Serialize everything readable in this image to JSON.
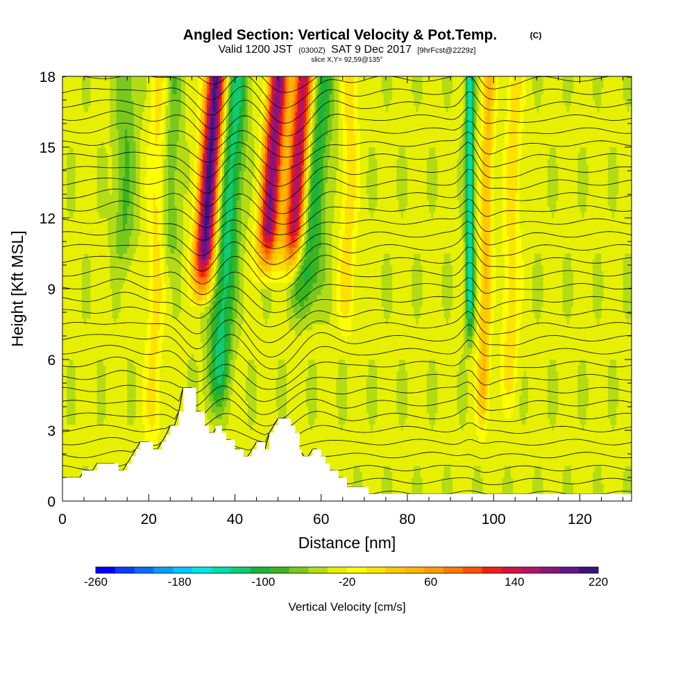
{
  "header": {
    "title": "Angled Section: Vertical Velocity & Pot.Temp.",
    "title_units": "(C)",
    "valid_a": "Valid 1200 JST",
    "valid_z": "(0300Z)",
    "valid_b": "SAT 9 Dec 2017",
    "fcst": "[9hrFcst@2229z]",
    "slice": "slice X,Y= 92,59@135°"
  },
  "colorbar": {
    "label": "Vertical Velocity [cm/s]",
    "tick_labels": [
      "-260",
      "-180",
      "-100",
      "-20",
      "60",
      "140",
      "220"
    ],
    "colors": [
      "#0000ff",
      "#0a3cff",
      "#0a6cff",
      "#0a9cff",
      "#00c8ff",
      "#00e6e6",
      "#00dcaa",
      "#10cc70",
      "#18b43c",
      "#3cb41e",
      "#78c81e",
      "#b4dc14",
      "#e6f000",
      "#ffff00",
      "#ffe100",
      "#ffc800",
      "#ffb400",
      "#ff9b00",
      "#ff7800",
      "#ff5000",
      "#f01e14",
      "#d2143c",
      "#b41464",
      "#8c1478",
      "#64148c",
      "#3c1478"
    ]
  },
  "chart_data": {
    "type": "heatmap",
    "title": "Angled Section: Vertical Velocity & Pot.Temp. (C)",
    "xlabel": "Distance [nm]",
    "ylabel": "Height [Kft MSL]",
    "xlim": [
      0,
      132
    ],
    "ylim": [
      0,
      18
    ],
    "x_ticks": [
      0,
      20,
      40,
      60,
      80,
      100,
      120
    ],
    "y_ticks": [
      0,
      3,
      6,
      9,
      12,
      15,
      18
    ],
    "colorbar_range": [
      -260,
      220
    ],
    "colorbar_step": 20,
    "background_value": -15,
    "updrafts": [
      {
        "x": 32.5,
        "tilt": 0.35,
        "width": 2.3,
        "amplitude": 260,
        "zmin": 8
      },
      {
        "x": 47,
        "tilt": 0.35,
        "width": 2.3,
        "amplitude": 230,
        "zmin": 9
      },
      {
        "x": 53,
        "tilt": 0.35,
        "width": 2.4,
        "amplitude": 230,
        "zmin": 9
      },
      {
        "x": 21.5,
        "tilt": 0.1,
        "width": 2.0,
        "amplitude": 40,
        "zmin": 1
      },
      {
        "x": 66,
        "tilt": 0.1,
        "width": 2.0,
        "amplitude": 45,
        "zmin": 6
      },
      {
        "x": 98,
        "tilt": 0.1,
        "width": 1.5,
        "amplitude": 75,
        "zmin": 2
      },
      {
        "x": 104,
        "tilt": 0.1,
        "width": 2.0,
        "amplitude": 45,
        "zmin": 3
      }
    ],
    "downdrafts": [
      {
        "x": 37.5,
        "tilt": 0.35,
        "width": 2.6,
        "amplitude": -95,
        "zmin": 3
      },
      {
        "x": 56.5,
        "tilt": 0.35,
        "width": 3.5,
        "amplitude": -80,
        "zmin": 7
      },
      {
        "x": 94.5,
        "tilt": 0.0,
        "width": 1.0,
        "amplitude": -130,
        "zmin": 6
      },
      {
        "x": 14,
        "tilt": 0.1,
        "width": 2.5,
        "amplitude": -45,
        "zmin": 9
      },
      {
        "x": 25,
        "tilt": 0.1,
        "width": 2.0,
        "amplitude": -40,
        "zmin": 9
      }
    ],
    "terrain": [
      [
        0,
        1
      ],
      [
        4.5,
        1
      ],
      [
        4.5,
        1.3
      ],
      [
        8,
        1.3
      ],
      [
        8,
        1.6
      ],
      [
        13,
        1.6
      ],
      [
        13,
        1.3
      ],
      [
        15,
        1.3
      ],
      [
        15,
        1.6
      ],
      [
        16,
        1.6
      ],
      [
        16,
        1.9
      ],
      [
        17,
        1.9
      ],
      [
        17,
        2.2
      ],
      [
        18,
        2.2
      ],
      [
        18,
        2.5
      ],
      [
        21,
        2.5
      ],
      [
        21,
        2.2
      ],
      [
        23,
        2.2
      ],
      [
        23,
        2.5
      ],
      [
        24,
        2.5
      ],
      [
        24,
        2.8
      ],
      [
        25,
        2.8
      ],
      [
        25,
        3.2
      ],
      [
        27,
        3.2
      ],
      [
        27,
        3.8
      ],
      [
        28,
        3.8
      ],
      [
        28,
        4.8
      ],
      [
        31,
        4.8
      ],
      [
        31,
        3.8
      ],
      [
        33,
        3.8
      ],
      [
        33,
        3.2
      ],
      [
        34,
        3.2
      ],
      [
        34,
        2.9
      ],
      [
        35.5,
        2.9
      ],
      [
        35.5,
        3.2
      ],
      [
        37,
        3.2
      ],
      [
        37,
        2.9
      ],
      [
        38,
        2.9
      ],
      [
        38,
        2.6
      ],
      [
        40,
        2.6
      ],
      [
        40,
        2.2
      ],
      [
        42,
        2.2
      ],
      [
        42,
        1.9
      ],
      [
        44,
        1.9
      ],
      [
        44,
        2.2
      ],
      [
        45,
        2.2
      ],
      [
        45,
        2.5
      ],
      [
        47,
        2.5
      ],
      [
        47,
        2.2
      ],
      [
        48,
        2.2
      ],
      [
        48,
        2.9
      ],
      [
        49,
        2.9
      ],
      [
        49,
        3.2
      ],
      [
        50,
        3.2
      ],
      [
        50,
        3.5
      ],
      [
        53,
        3.5
      ],
      [
        53,
        3.2
      ],
      [
        54,
        3.2
      ],
      [
        54,
        2.9
      ],
      [
        55,
        2.9
      ],
      [
        55,
        2.2
      ],
      [
        55.5,
        2.2
      ],
      [
        55.5,
        1.9
      ],
      [
        58,
        1.9
      ],
      [
        58,
        2.2
      ],
      [
        60,
        2.2
      ],
      [
        60,
        1.9
      ],
      [
        61,
        1.9
      ],
      [
        61,
        1.6
      ],
      [
        62,
        1.6
      ],
      [
        62,
        1.3
      ],
      [
        64,
        1.3
      ],
      [
        64,
        1.0
      ],
      [
        66,
        1.0
      ],
      [
        66,
        0.6
      ],
      [
        71,
        0.6
      ],
      [
        71,
        0.3
      ],
      [
        132,
        0.3
      ]
    ],
    "isentropes_dash_zero": 18
  }
}
